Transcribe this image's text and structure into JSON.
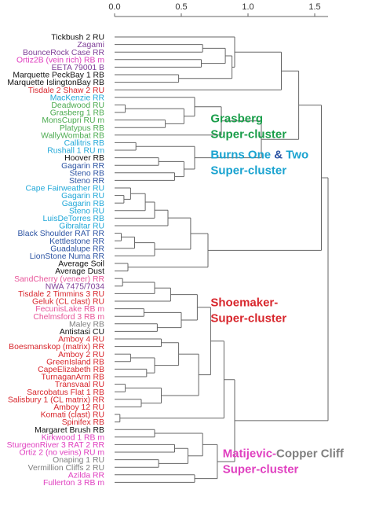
{
  "chart_data": {
    "type": "dendrogram",
    "orientation": "horizontal",
    "xlim": [
      0,
      1.6
    ],
    "xticks": [
      0,
      0.5,
      1,
      1.5
    ],
    "xtick_labels": [
      "0.0",
      "0.5",
      "1.0",
      "1.5"
    ],
    "colors": {
      "black": "#111111",
      "purple": "#7f3f98",
      "red": "#d8272d",
      "green": "#4cab50",
      "cyan": "#22a8d8",
      "blue": "#2e55a4",
      "gray": "#808080",
      "magenta": "#e040c0",
      "pink": "#e8559a",
      "green_dark": "#1a9e4a",
      "teal": "#1aa3d0",
      "line": "#666666"
    },
    "leaves": [
      {
        "label": "Tickbush 2 RU",
        "color": "black"
      },
      {
        "label": "Zagami",
        "color": "purple"
      },
      {
        "label": "BounceRock Case RR",
        "color": "purple"
      },
      {
        "label": "Ortiz2B (vein rich) RB m",
        "color": "magenta"
      },
      {
        "label": "EETA 79001 B",
        "color": "purple"
      },
      {
        "label": "Marquette PeckBay 1 RB",
        "color": "black"
      },
      {
        "label": "Marquette IslingtonBay RB",
        "color": "black"
      },
      {
        "label": "Tisdale 2 Shaw 2 RU",
        "color": "red"
      },
      {
        "label": "MacKenzie RR",
        "color": "cyan"
      },
      {
        "label": "Deadwood RU",
        "color": "green"
      },
      {
        "label": "Grasberg 1 RB",
        "color": "green"
      },
      {
        "label": "MonsCupri RU m",
        "color": "green"
      },
      {
        "label": "Platypus RB",
        "color": "green"
      },
      {
        "label": "WallyWombat RB",
        "color": "green"
      },
      {
        "label": "Callitris RB",
        "color": "cyan"
      },
      {
        "label": "Rushall 1 RU m",
        "color": "cyan"
      },
      {
        "label": "Hoover RB",
        "color": "black"
      },
      {
        "label": "Gagarin RR",
        "color": "blue"
      },
      {
        "label": "Steno RB",
        "color": "blue"
      },
      {
        "label": "Steno RR",
        "color": "blue"
      },
      {
        "label": "Cape Fairweather RU",
        "color": "cyan"
      },
      {
        "label": "Gagarin RU",
        "color": "cyan"
      },
      {
        "label": "Gagarin RB",
        "color": "cyan"
      },
      {
        "label": "Steno RU",
        "color": "cyan"
      },
      {
        "label": "LuisDeTorres RB",
        "color": "cyan"
      },
      {
        "label": "Gibraltar RU",
        "color": "cyan"
      },
      {
        "label": "Black Shoulder RAT RR",
        "color": "blue"
      },
      {
        "label": "Kettlestone RR",
        "color": "blue"
      },
      {
        "label": "Guadalupe RR",
        "color": "blue"
      },
      {
        "label": "LionStone Numa RR",
        "color": "blue"
      },
      {
        "label": "Average Soil",
        "color": "black"
      },
      {
        "label": "Average Dust",
        "color": "black"
      },
      {
        "label": "SandCherry (veneer) RR",
        "color": "pink"
      },
      {
        "label": "NWA 7475/7034",
        "color": "purple"
      },
      {
        "label": "Tisdale 2 Timmins 3 RU",
        "color": "red"
      },
      {
        "label": "Geluk (CL clast) RU",
        "color": "red"
      },
      {
        "label": "FecunisLake RB m",
        "color": "pink"
      },
      {
        "label": "Chelmsford 3 RB m",
        "color": "pink"
      },
      {
        "label": "Maley RB",
        "color": "gray"
      },
      {
        "label": "Antistasi CU",
        "color": "black"
      },
      {
        "label": "Amboy 4 RU",
        "color": "red"
      },
      {
        "label": "Boesmanskop (matrix) RR",
        "color": "red"
      },
      {
        "label": "Amboy 2 RU",
        "color": "red"
      },
      {
        "label": "GreenIsland RB",
        "color": "red"
      },
      {
        "label": "CapeElizabeth RB",
        "color": "red"
      },
      {
        "label": "TurnaganArm RB",
        "color": "red"
      },
      {
        "label": "Transvaal RU",
        "color": "red"
      },
      {
        "label": "Sarcobatus Flat 1 RB",
        "color": "red"
      },
      {
        "label": "Salisbury 1 (CL matrix) RR",
        "color": "red"
      },
      {
        "label": "Amboy 12 RU",
        "color": "red"
      },
      {
        "label": "Komati (clast) RU",
        "color": "red"
      },
      {
        "label": "Spinifex RB",
        "color": "red"
      },
      {
        "label": "Margaret Brush RB",
        "color": "black"
      },
      {
        "label": "Kirkwood 1 RB m",
        "color": "magenta"
      },
      {
        "label": "SturgeonRiver 3 RAT 2 RR",
        "color": "magenta"
      },
      {
        "label": "Ortiz 2 (no veins) RU m",
        "color": "magenta"
      },
      {
        "label": "Onaping 1 RU",
        "color": "gray"
      },
      {
        "label": "Vermillion Cliffs 2 RU",
        "color": "gray"
      },
      {
        "label": "Azilda RR",
        "color": "magenta"
      },
      {
        "label": "Fullerton 3 RB m",
        "color": "magenta"
      }
    ],
    "merges": [
      [
        1,
        2,
        0.66
      ],
      [
        3,
        4,
        0.65
      ],
      [
        60,
        61,
        0.83
      ],
      [
        5,
        6,
        0.48
      ],
      [
        62,
        63,
        0.88
      ],
      [
        0,
        64,
        0.9
      ],
      [
        7,
        65,
        1.25
      ],
      [
        9,
        10,
        0.08
      ],
      [
        11,
        12,
        0.38
      ],
      [
        67,
        68,
        0.52
      ],
      [
        8,
        69,
        0.6
      ],
      [
        13,
        70,
        0.8
      ],
      [
        14,
        15,
        0.16
      ],
      [
        16,
        17,
        0.33
      ],
      [
        18,
        19,
        0.45
      ],
      [
        73,
        74,
        0.52
      ],
      [
        72,
        75,
        0.6
      ],
      [
        71,
        76,
        1.1
      ],
      [
        66,
        77,
        1.38
      ],
      [
        21,
        22,
        0.07
      ],
      [
        20,
        79,
        0.12
      ],
      [
        23,
        80,
        0.23
      ],
      [
        24,
        81,
        0.3
      ],
      [
        25,
        82,
        0.4
      ],
      [
        26,
        27,
        0.05
      ],
      [
        28,
        84,
        0.15
      ],
      [
        29,
        85,
        0.3
      ],
      [
        83,
        86,
        0.57
      ],
      [
        30,
        31,
        0.1
      ],
      [
        87,
        88,
        0.7
      ],
      [
        78,
        89,
        1.55
      ],
      [
        32,
        33,
        0.06
      ],
      [
        34,
        91,
        0.3
      ],
      [
        35,
        92,
        0.42
      ],
      [
        36,
        37,
        0.22
      ],
      [
        38,
        39,
        0.32
      ],
      [
        94,
        95,
        0.5
      ],
      [
        93,
        96,
        0.62
      ],
      [
        40,
        41,
        0.35
      ],
      [
        42,
        43,
        0.12
      ],
      [
        44,
        45,
        0.24
      ],
      [
        99,
        100,
        0.3
      ],
      [
        98,
        101,
        0.48
      ],
      [
        46,
        47,
        0.08
      ],
      [
        48,
        49,
        0.2
      ],
      [
        103,
        104,
        0.35
      ],
      [
        102,
        105,
        0.63
      ],
      [
        97,
        106,
        0.72
      ],
      [
        50,
        51,
        0.04
      ],
      [
        107,
        108,
        0.82
      ],
      [
        52,
        53,
        0.3
      ],
      [
        54,
        55,
        0.45
      ],
      [
        56,
        57,
        0.33
      ],
      [
        111,
        112,
        0.55
      ],
      [
        110,
        113,
        0.66
      ],
      [
        58,
        59,
        0.6
      ],
      [
        114,
        115,
        0.77
      ],
      [
        109,
        116,
        0.9
      ],
      [
        90,
        117,
        1.6
      ]
    ],
    "annotations": [
      {
        "lines": [
          [
            {
              "text": "Grasberg",
              "color": "green_dark"
            }
          ],
          [
            {
              "text": "Super-cluster",
              "color": "green_dark"
            }
          ]
        ],
        "x": 0.72,
        "leaf": 11.3
      },
      {
        "lines": [
          [
            {
              "text": "Burns One ",
              "color": "teal"
            },
            {
              "text": "& ",
              "color": "blue"
            },
            {
              "text": "Two",
              "color": "teal"
            }
          ],
          [
            {
              "text": "Super-cluster",
              "color": "teal"
            }
          ]
        ],
        "x": 0.72,
        "leaf": 16.1
      },
      {
        "lines": [
          [
            {
              "text": "Shoemaker-",
              "color": "red"
            }
          ],
          [
            {
              "text": "Super-cluster",
              "color": "red"
            }
          ]
        ],
        "x": 0.72,
        "leaf": 35.7
      },
      {
        "lines": [
          [
            {
              "text": "Matijevic-",
              "color": "magenta"
            },
            {
              "text": "Copper Cliff",
              "color": "gray"
            }
          ],
          [
            {
              "text": "Super-cluster",
              "color": "magenta"
            }
          ]
        ],
        "x": 0.81,
        "leaf": 55.7
      }
    ]
  }
}
